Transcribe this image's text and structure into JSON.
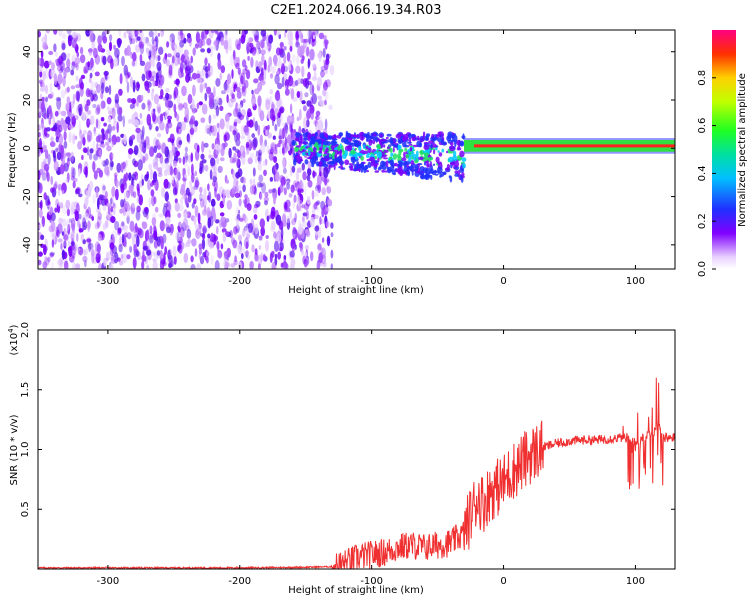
{
  "title": "C2E1.2024.066.19.34.R03",
  "colors": {
    "snr_line": "#f03030",
    "frame": "#000000"
  },
  "chart_data": [
    {
      "type": "heatmap",
      "xlabel": "Height of straight line (km)",
      "ylabel": "Frequency (Hz)",
      "xlim": [
        -353,
        130
      ],
      "ylim": [
        -50,
        49
      ],
      "xticks": [
        -300,
        -200,
        -100,
        0,
        100
      ],
      "yticks": [
        -40,
        -20,
        0,
        20,
        40
      ],
      "colorbar": {
        "label": "Normalized spectral amplitude",
        "range": [
          0,
          1
        ],
        "ticks": [
          0.0,
          0.2,
          0.4,
          0.6,
          0.8
        ]
      },
      "regions": [
        {
          "name": "noise",
          "x": [
            -353,
            -130
          ],
          "y": [
            -50,
            49
          ],
          "amplitude": 0.1
        },
        {
          "name": "transition",
          "x": [
            -160,
            -30
          ],
          "y": [
            -15,
            10
          ],
          "amplitude": 0.35
        },
        {
          "name": "signal",
          "x": [
            -30,
            130
          ],
          "y": [
            -1,
            3
          ],
          "amplitude": 0.95
        }
      ]
    },
    {
      "type": "line",
      "xlabel": "Height of straight line (km)",
      "ylabel": "SNR (10 * v/v)",
      "y_scale_label": "(x10",
      "y_scale_exp": "4",
      "y_scale_close": ")",
      "xlim": [
        -353,
        130
      ],
      "ylim": [
        0,
        2.0
      ],
      "xticks": [
        -300,
        -200,
        -100,
        0,
        100
      ],
      "yticks": [
        0.5,
        1.0,
        1.5,
        2.0
      ],
      "ytick_labels": [
        "0.5",
        "1.0",
        "1.5",
        "2.0"
      ],
      "series": [
        {
          "x": [
            -353,
            -300,
            -250,
            -200,
            -150,
            -130,
            -120,
            -110,
            -100,
            -90,
            -80,
            -70,
            -60,
            -50,
            -40,
            -30,
            -25,
            -20,
            -15,
            -10,
            -5,
            0,
            5,
            10,
            20,
            30,
            40,
            50,
            60,
            70,
            80,
            90,
            95,
            100,
            105,
            110,
            115,
            118,
            120,
            125,
            130
          ],
          "y": [
            0.01,
            0.01,
            0.01,
            0.01,
            0.015,
            0.02,
            0.05,
            0.1,
            0.12,
            0.14,
            0.18,
            0.2,
            0.18,
            0.2,
            0.22,
            0.3,
            0.45,
            0.6,
            0.55,
            0.65,
            0.68,
            0.72,
            0.8,
            0.85,
            0.95,
            1.02,
            1.05,
            1.07,
            1.08,
            1.08,
            1.09,
            1.1,
            1.1,
            1.05,
            1.1,
            1.12,
            1.15,
            1.2,
            1.1,
            1.1,
            1.1
          ]
        }
      ]
    }
  ]
}
